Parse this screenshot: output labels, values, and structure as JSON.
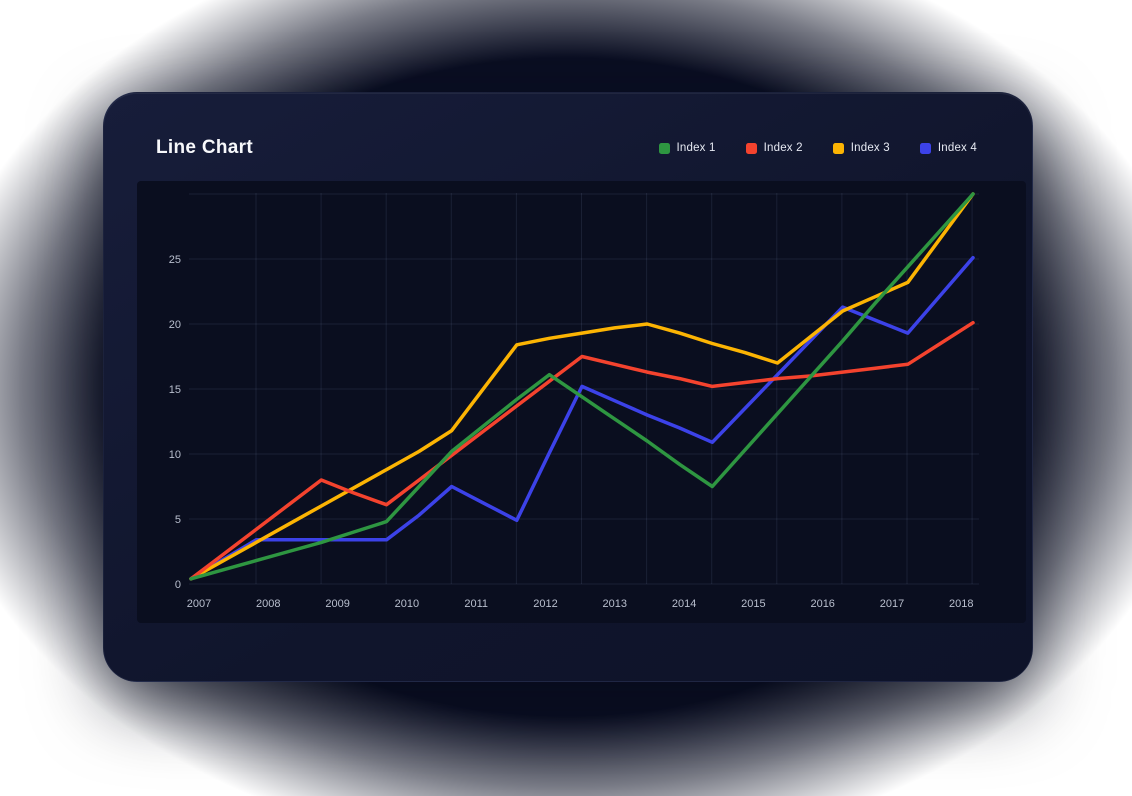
{
  "chart_data": {
    "type": "line",
    "title": "Line Chart",
    "x_tick_labels": [
      "2007",
      "2008",
      "2009",
      "2010",
      "2011",
      "2012",
      "2013",
      "2014",
      "2015",
      "2016",
      "2017",
      "2018"
    ],
    "y_ticks": [
      0,
      5,
      10,
      15,
      20,
      25
    ],
    "ylim": [
      0,
      30
    ],
    "points_per_year": 2,
    "grid": true,
    "legend_position": "top-right",
    "xlabel": "",
    "ylabel": "",
    "series": [
      {
        "name": "Index 1",
        "color": "#2e9641",
        "values": [
          0.4,
          1.1,
          1.8,
          2.5,
          3.2,
          4.0,
          4.8,
          7.5,
          10.2,
          12.2,
          14.2,
          16.1,
          14.4,
          12.7,
          11.0,
          9.2,
          7.5,
          10.3,
          13.1,
          15.9,
          18.7,
          21.6,
          24.4,
          27.2,
          30.0
        ]
      },
      {
        "name": "Index 2",
        "color": "#f4432e",
        "values": [
          0.4,
          2.3,
          4.2,
          6.1,
          8.0,
          7.0,
          6.1,
          8.0,
          9.9,
          11.8,
          13.7,
          15.6,
          17.5,
          16.9,
          16.3,
          15.8,
          15.2,
          15.5,
          15.8,
          16.0,
          16.3,
          16.6,
          16.9,
          18.5,
          20.1
        ]
      },
      {
        "name": "Index 3",
        "color": "#fcb403",
        "values": [
          0.4,
          1.8,
          3.2,
          4.6,
          6.0,
          7.4,
          8.8,
          10.2,
          11.8,
          15.1,
          18.4,
          18.9,
          19.3,
          19.7,
          20.0,
          19.3,
          18.5,
          17.8,
          17.0,
          19.0,
          21.0,
          22.1,
          23.2,
          26.6,
          30.0
        ]
      },
      {
        "name": "Index 4",
        "color": "#3c42e8",
        "values": [
          0.4,
          1.9,
          3.4,
          3.4,
          3.4,
          3.4,
          3.4,
          5.3,
          7.5,
          6.2,
          4.9,
          10.1,
          15.2,
          14.1,
          13.0,
          12.0,
          10.9,
          13.5,
          16.1,
          18.7,
          21.3,
          20.3,
          19.3,
          22.2,
          25.1
        ]
      }
    ]
  },
  "theme": {
    "page_bg": "#ffffff",
    "glow": "#0a0e22",
    "card_bg": "#121731",
    "panel_bg": "#0a0e1f",
    "grid_color": "#2a3150",
    "title_color": "#f7f8fb",
    "axis_text_color": "#b9bfce",
    "legend_text_color": "#e6e9f2"
  }
}
